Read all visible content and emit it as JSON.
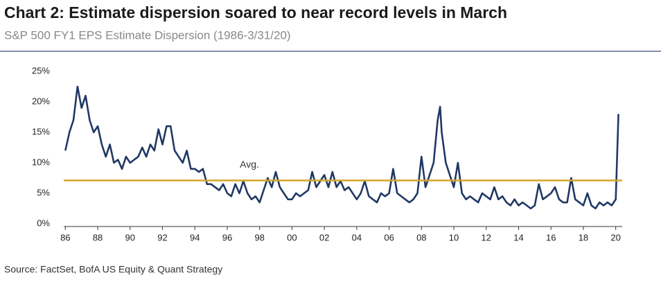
{
  "chart_data": {
    "type": "line",
    "title": "Chart 2: Estimate dispersion soared to near record levels in March",
    "subtitle": "S&P 500 FY1 EPS Estimate Dispersion (1986-3/31/20)",
    "source": "Source: FactSet, BofA US Equity & Quant Strategy",
    "x": [
      1986.0,
      1986.25,
      1986.5,
      1986.75,
      1987.0,
      1987.25,
      1987.5,
      1987.75,
      1988.0,
      1988.25,
      1988.5,
      1988.75,
      1989.0,
      1989.25,
      1989.5,
      1989.75,
      1990.0,
      1990.25,
      1990.5,
      1990.75,
      1991.0,
      1991.25,
      1991.5,
      1991.75,
      1992.0,
      1992.25,
      1992.5,
      1992.75,
      1993.0,
      1993.25,
      1993.5,
      1993.75,
      1994.0,
      1994.25,
      1994.5,
      1994.75,
      1995.0,
      1995.25,
      1995.5,
      1995.75,
      1996.0,
      1996.25,
      1996.5,
      1996.75,
      1997.0,
      1997.25,
      1997.5,
      1997.75,
      1998.0,
      1998.25,
      1998.5,
      1998.75,
      1999.0,
      1999.25,
      1999.5,
      1999.75,
      2000.0,
      2000.25,
      2000.5,
      2000.75,
      2001.0,
      2001.25,
      2001.5,
      2001.75,
      2002.0,
      2002.25,
      2002.5,
      2002.75,
      2003.0,
      2003.25,
      2003.5,
      2003.75,
      2004.0,
      2004.25,
      2004.5,
      2004.75,
      2005.0,
      2005.25,
      2005.5,
      2005.75,
      2006.0,
      2006.25,
      2006.5,
      2006.75,
      2007.0,
      2007.25,
      2007.5,
      2007.75,
      2008.0,
      2008.25,
      2008.5,
      2008.75,
      2009.0,
      2009.15,
      2009.25,
      2009.5,
      2009.75,
      2010.0,
      2010.25,
      2010.5,
      2010.75,
      2011.0,
      2011.25,
      2011.5,
      2011.75,
      2012.0,
      2012.25,
      2012.5,
      2012.75,
      2013.0,
      2013.25,
      2013.5,
      2013.75,
      2014.0,
      2014.25,
      2014.5,
      2014.75,
      2015.0,
      2015.25,
      2015.5,
      2015.75,
      2016.0,
      2016.25,
      2016.5,
      2016.75,
      2017.0,
      2017.25,
      2017.5,
      2017.75,
      2018.0,
      2018.25,
      2018.5,
      2018.75,
      2019.0,
      2019.25,
      2019.5,
      2019.75,
      2020.0,
      2020.17
    ],
    "series": [
      {
        "color": "#1f3864",
        "values": [
          12,
          15,
          17,
          22.5,
          19,
          21,
          17,
          15,
          16,
          13,
          11,
          13,
          10,
          10.5,
          9,
          11,
          10,
          10.5,
          11,
          12.5,
          11,
          13,
          12,
          15.5,
          13,
          16,
          16,
          12,
          11,
          10,
          12,
          9,
          9,
          8.5,
          9,
          6.5,
          6.5,
          6,
          5.5,
          6.5,
          5,
          4.5,
          6.5,
          5,
          7,
          5,
          4,
          4.5,
          3.5,
          5.5,
          7.5,
          6,
          8.5,
          6,
          5,
          4,
          4,
          5,
          4.5,
          5,
          5.5,
          8.5,
          6,
          7,
          8,
          6,
          8.5,
          6,
          7,
          5.5,
          6,
          5,
          4,
          5,
          7,
          4.5,
          4,
          3.5,
          5,
          4.5,
          5,
          9,
          5,
          4.5,
          4,
          3.5,
          4,
          5,
          11,
          6,
          8,
          10,
          17,
          19.2,
          15,
          10,
          8,
          6,
          10,
          5,
          4,
          4.5,
          4,
          3.5,
          5,
          4.5,
          4,
          6,
          4,
          4.5,
          3.5,
          3,
          4,
          3,
          3.5,
          3,
          2.5,
          3,
          6.5,
          4,
          4.5,
          5,
          6,
          4,
          3.5,
          3.5,
          7.5,
          4,
          3.5,
          3,
          5,
          3,
          2.5,
          3.5,
          3,
          3.5,
          3,
          4,
          18
        ]
      }
    ],
    "average": 7.1,
    "average_label": "Avg.",
    "average_color": "#d4a52a",
    "xlim": [
      1985.9,
      2020.4
    ],
    "xticks": [
      {
        "value": 1986,
        "label": "86"
      },
      {
        "value": 1988,
        "label": "88"
      },
      {
        "value": 1990,
        "label": "90"
      },
      {
        "value": 1992,
        "label": "92"
      },
      {
        "value": 1994,
        "label": "94"
      },
      {
        "value": 1996,
        "label": "96"
      },
      {
        "value": 1998,
        "label": "98"
      },
      {
        "value": 2000,
        "label": "00"
      },
      {
        "value": 2002,
        "label": "02"
      },
      {
        "value": 2004,
        "label": "04"
      },
      {
        "value": 2006,
        "label": "06"
      },
      {
        "value": 2008,
        "label": "08"
      },
      {
        "value": 2010,
        "label": "10"
      },
      {
        "value": 2012,
        "label": "12"
      },
      {
        "value": 2014,
        "label": "14"
      },
      {
        "value": 2016,
        "label": "16"
      },
      {
        "value": 2018,
        "label": "18"
      },
      {
        "value": 2020,
        "label": "20"
      }
    ],
    "ylim": [
      0,
      25
    ],
    "yticks": [
      {
        "value": 0,
        "label": "0%"
      },
      {
        "value": 5,
        "label": "5%"
      },
      {
        "value": 10,
        "label": "10%"
      },
      {
        "value": 15,
        "label": "15%"
      },
      {
        "value": 20,
        "label": "20%"
      },
      {
        "value": 25,
        "label": "25%"
      }
    ]
  }
}
